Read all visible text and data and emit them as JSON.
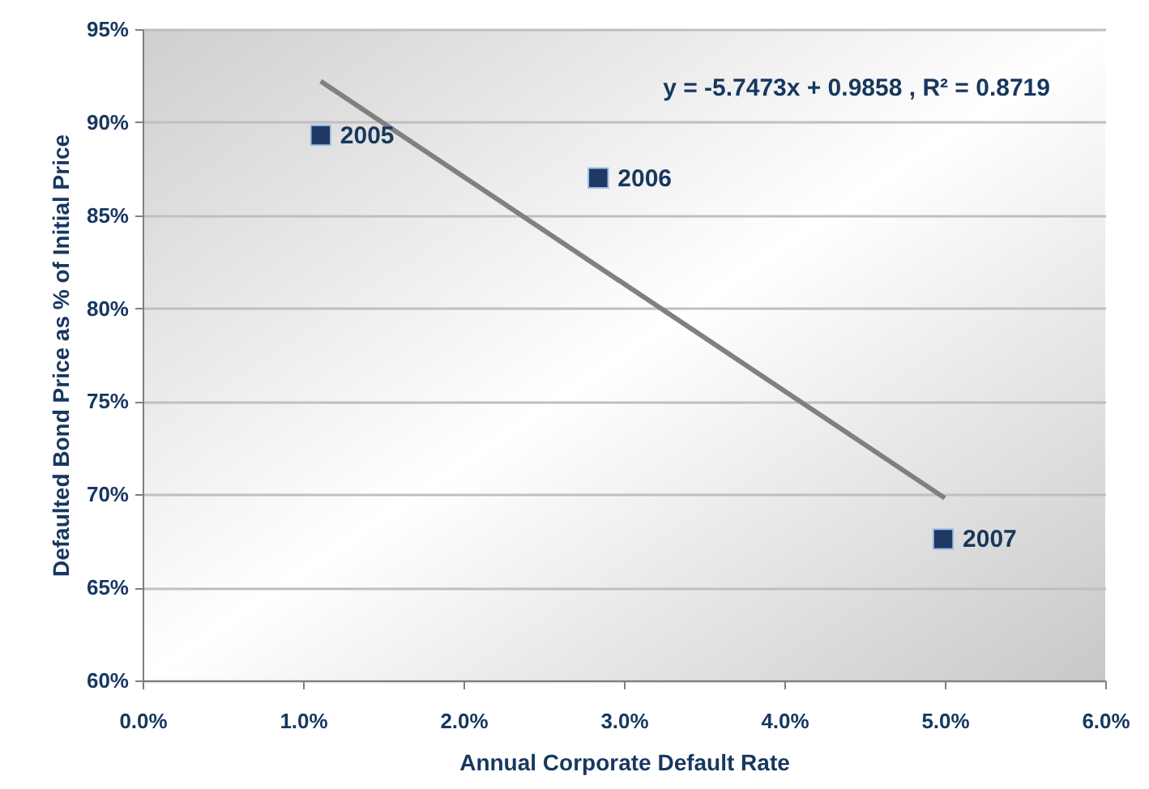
{
  "chart_data": {
    "type": "scatter",
    "xlabel": "Annual Corporate Default Rate",
    "ylabel": "Defaulted Bond Price as % of Initial Price",
    "xlim": [
      0,
      6
    ],
    "xticks": [
      {
        "value": 0,
        "label": "0.0%"
      },
      {
        "value": 1,
        "label": "1.0%"
      },
      {
        "value": 2,
        "label": "2.0%"
      },
      {
        "value": 3,
        "label": "3.0%"
      },
      {
        "value": 4,
        "label": "4.0%"
      },
      {
        "value": 5,
        "label": "5.0%"
      },
      {
        "value": 6,
        "label": "6.0%"
      }
    ],
    "ylim": [
      60,
      95
    ],
    "yticks": [
      {
        "value": 60,
        "label": "60%"
      },
      {
        "value": 65,
        "label": "65%"
      },
      {
        "value": 70,
        "label": "70%"
      },
      {
        "value": 75,
        "label": "75%"
      },
      {
        "value": 80,
        "label": "80%"
      },
      {
        "value": 85,
        "label": "85%"
      },
      {
        "value": 90,
        "label": "90%"
      },
      {
        "value": 95,
        "label": "95%"
      }
    ],
    "grid": "y",
    "marker": "square",
    "series": [
      {
        "color": "#1f3864",
        "x": [
          1.11,
          2.84,
          4.99
        ],
        "values": [
          89.3,
          87.0,
          67.6
        ]
      },
      {
        "type": "line",
        "marker": "none",
        "color": "#808080",
        "x": [
          1.11,
          5.0
        ],
        "values": [
          92.2,
          69.8
        ]
      }
    ],
    "annotations": [
      {
        "text": "2005",
        "x": 1.11,
        "y": 89.3
      },
      {
        "text": "2006",
        "x": 2.84,
        "y": 87.0
      },
      {
        "text": "2007",
        "x": 4.99,
        "y": 67.6
      },
      "y = -5.7473x + 0.9858 , R² = 0.8719"
    ]
  }
}
